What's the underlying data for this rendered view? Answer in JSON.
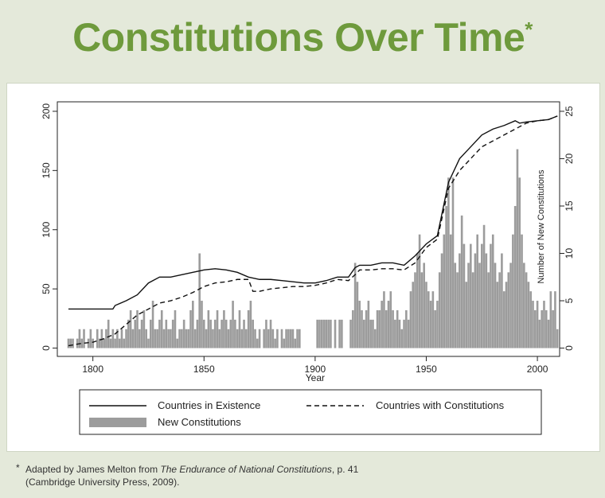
{
  "title": "Constitutions Over Time",
  "title_mark": "*",
  "footnote": {
    "mark": "*",
    "before": "Adapted by James Melton from ",
    "italic": "The Endurance of National Constitutions",
    "after": ", p. 41",
    "line2": "(Cambridge University Press, 2009)."
  },
  "chart_data": {
    "type": "bar",
    "xlabel": "Year",
    "y2label": "Number of New Constitutions",
    "xlim": [
      1784,
      2010
    ],
    "xticks": [
      1800,
      1850,
      1900,
      1950,
      2000
    ],
    "ylim": [
      -7,
      208
    ],
    "yticks": [
      0,
      50,
      100,
      150,
      200
    ],
    "y2lim": [
      -0.875,
      26
    ],
    "y2ticks": [
      0,
      5,
      10,
      15,
      20,
      25
    ],
    "series": [
      {
        "name": "Countries in Existence",
        "type": "line",
        "style": "solid",
        "color": "#111111",
        "x": [
          1789,
          1809,
          1810,
          1815,
          1820,
          1825,
          1830,
          1835,
          1840,
          1845,
          1850,
          1855,
          1860,
          1865,
          1870,
          1875,
          1880,
          1885,
          1890,
          1895,
          1900,
          1905,
          1910,
          1915,
          1918,
          1920,
          1925,
          1930,
          1935,
          1940,
          1945,
          1950,
          1955,
          1960,
          1965,
          1970,
          1975,
          1980,
          1985,
          1990,
          1992,
          1995,
          2000,
          2005,
          2009
        ],
        "values": [
          33,
          33,
          36,
          40,
          45,
          55,
          60,
          60,
          62,
          64,
          66,
          67,
          66,
          64,
          60,
          58,
          58,
          57,
          56,
          55,
          55,
          57,
          60,
          60,
          68,
          70,
          70,
          72,
          72,
          70,
          78,
          88,
          95,
          140,
          160,
          170,
          180,
          185,
          188,
          192,
          190,
          191,
          192,
          193,
          196
        ]
      },
      {
        "name": "Countries with Constitutions",
        "type": "line",
        "style": "dashed",
        "color": "#111111",
        "x": [
          1789,
          1795,
          1800,
          1805,
          1810,
          1815,
          1820,
          1825,
          1830,
          1835,
          1840,
          1845,
          1850,
          1855,
          1860,
          1865,
          1870,
          1872,
          1875,
          1880,
          1885,
          1890,
          1895,
          1900,
          1905,
          1910,
          1915,
          1918,
          1920,
          1925,
          1930,
          1935,
          1940,
          1945,
          1950,
          1955,
          1960,
          1965,
          1970,
          1975,
          1980,
          1985,
          1990,
          1995,
          2000,
          2005,
          2009
        ],
        "values": [
          2,
          4,
          5,
          8,
          12,
          20,
          28,
          33,
          38,
          40,
          43,
          47,
          52,
          55,
          56,
          58,
          58,
          48,
          48,
          50,
          51,
          52,
          52,
          53,
          55,
          58,
          57,
          62,
          66,
          66,
          67,
          67,
          66,
          72,
          85,
          92,
          135,
          150,
          160,
          170,
          175,
          180,
          185,
          190,
          192,
          193,
          196
        ]
      },
      {
        "name": "New Constitutions",
        "type": "bar",
        "axis": "y2",
        "color": "#9c9c9c",
        "x": [
          1789,
          1790,
          1791,
          1792,
          1793,
          1794,
          1795,
          1796,
          1797,
          1798,
          1799,
          1800,
          1801,
          1802,
          1803,
          1804,
          1805,
          1806,
          1807,
          1808,
          1809,
          1810,
          1811,
          1812,
          1813,
          1814,
          1815,
          1816,
          1817,
          1818,
          1819,
          1820,
          1821,
          1822,
          1823,
          1824,
          1825,
          1826,
          1827,
          1828,
          1829,
          1830,
          1831,
          1832,
          1833,
          1834,
          1835,
          1836,
          1837,
          1838,
          1839,
          1840,
          1841,
          1842,
          1843,
          1844,
          1845,
          1846,
          1847,
          1848,
          1849,
          1850,
          1851,
          1852,
          1853,
          1854,
          1855,
          1856,
          1857,
          1858,
          1859,
          1860,
          1861,
          1862,
          1863,
          1864,
          1865,
          1866,
          1867,
          1868,
          1869,
          1870,
          1871,
          1872,
          1873,
          1874,
          1875,
          1876,
          1877,
          1878,
          1879,
          1880,
          1881,
          1882,
          1883,
          1884,
          1885,
          1886,
          1887,
          1888,
          1889,
          1890,
          1891,
          1892,
          1893,
          1894,
          1895,
          1896,
          1897,
          1898,
          1899,
          1900,
          1901,
          1902,
          1903,
          1904,
          1905,
          1906,
          1907,
          1908,
          1909,
          1910,
          1911,
          1912,
          1913,
          1914,
          1915,
          1916,
          1917,
          1918,
          1919,
          1920,
          1921,
          1922,
          1923,
          1924,
          1925,
          1926,
          1927,
          1928,
          1929,
          1930,
          1931,
          1932,
          1933,
          1934,
          1935,
          1936,
          1937,
          1938,
          1939,
          1940,
          1941,
          1942,
          1943,
          1944,
          1945,
          1946,
          1947,
          1948,
          1949,
          1950,
          1951,
          1952,
          1953,
          1954,
          1955,
          1956,
          1957,
          1958,
          1959,
          1960,
          1961,
          1962,
          1963,
          1964,
          1965,
          1966,
          1967,
          1968,
          1969,
          1970,
          1971,
          1972,
          1973,
          1974,
          1975,
          1976,
          1977,
          1978,
          1979,
          1980,
          1981,
          1982,
          1983,
          1984,
          1985,
          1986,
          1987,
          1988,
          1989,
          1990,
          1991,
          1992,
          1993,
          1994,
          1995,
          1996,
          1997,
          1998,
          1999,
          2000,
          2001,
          2002,
          2003,
          2004,
          2005,
          2006,
          2007,
          2008,
          2009
        ],
        "values": [
          1,
          1,
          1,
          0,
          1,
          2,
          1,
          2,
          0,
          1,
          2,
          1,
          0,
          2,
          1,
          2,
          1,
          2,
          3,
          1,
          2,
          1,
          2,
          1,
          2,
          1,
          2,
          3,
          4,
          2,
          3,
          4,
          2,
          3,
          4,
          2,
          1,
          3,
          5,
          2,
          2,
          3,
          4,
          2,
          3,
          2,
          2,
          3,
          4,
          1,
          2,
          2,
          3,
          2,
          2,
          4,
          5,
          2,
          3,
          10,
          5,
          3,
          2,
          4,
          3,
          2,
          3,
          4,
          2,
          3,
          4,
          3,
          2,
          3,
          5,
          3,
          2,
          4,
          2,
          3,
          2,
          4,
          5,
          3,
          2,
          1,
          2,
          0,
          2,
          3,
          2,
          3,
          2,
          1,
          2,
          0,
          2,
          1,
          2,
          2,
          2,
          2,
          1,
          2,
          2,
          0,
          0,
          0,
          0,
          0,
          0,
          0,
          3,
          3,
          3,
          3,
          3,
          3,
          3,
          0,
          3,
          0,
          3,
          3,
          0,
          0,
          0,
          3,
          4,
          9,
          7,
          5,
          4,
          3,
          4,
          5,
          3,
          3,
          2,
          4,
          4,
          5,
          6,
          4,
          5,
          6,
          4,
          3,
          4,
          3,
          2,
          3,
          4,
          3,
          6,
          7,
          8,
          10,
          12,
          8,
          9,
          7,
          6,
          5,
          6,
          4,
          5,
          8,
          10,
          12,
          15,
          18,
          12,
          18,
          9,
          8,
          10,
          14,
          11,
          7,
          9,
          11,
          8,
          10,
          12,
          9,
          11,
          13,
          10,
          8,
          11,
          12,
          9,
          7,
          8,
          10,
          6,
          7,
          8,
          9,
          12,
          15,
          21,
          18,
          12,
          9,
          8,
          7,
          6,
          5,
          4,
          5,
          3,
          4,
          5,
          4,
          3,
          6,
          4,
          6,
          2
        ]
      }
    ]
  }
}
